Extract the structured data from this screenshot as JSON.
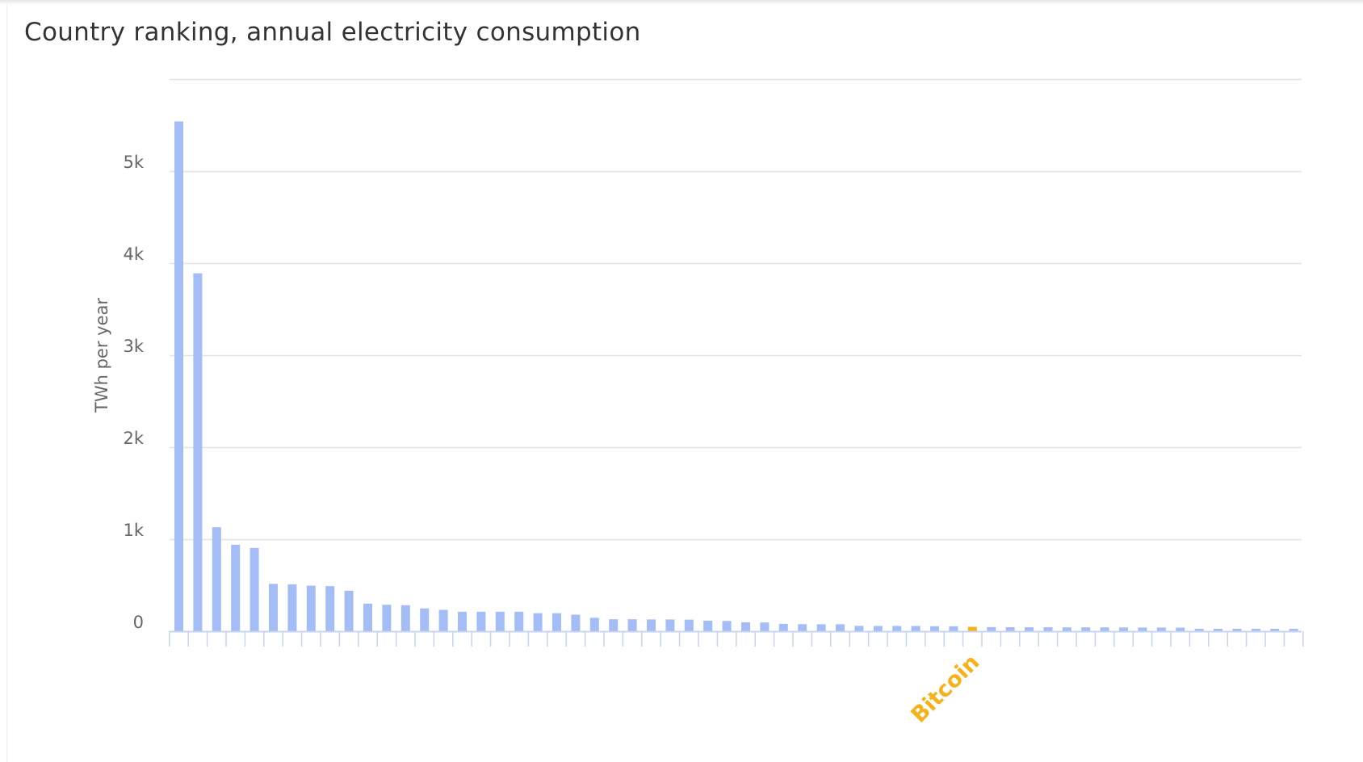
{
  "title": "Country ranking, annual electricity consumption",
  "colors": {
    "bar": "#a5bdf7",
    "highlight": "#f7b21a",
    "grid": "#e3e3e3",
    "axis": "#c8d4ee",
    "text": "#666666",
    "title": "#333333"
  },
  "chart_data": {
    "type": "bar",
    "title": "Country ranking, annual electricity consumption",
    "xlabel": "",
    "ylabel": "TWh per year",
    "ylim": [
      0,
      6000
    ],
    "yticks": [
      0,
      1000,
      2000,
      3000,
      4000,
      5000
    ],
    "ytick_labels": [
      "0",
      "1k",
      "2k",
      "3k",
      "4k",
      "5k"
    ],
    "grid": true,
    "highlight_index": 42,
    "highlight_label": "Bitcoin",
    "values": [
      5540,
      3890,
      1130,
      940,
      905,
      515,
      510,
      495,
      490,
      440,
      300,
      288,
      283,
      248,
      232,
      212,
      212,
      212,
      212,
      196,
      196,
      180,
      146,
      130,
      130,
      128,
      128,
      126,
      115,
      112,
      97,
      95,
      80,
      77,
      76,
      76,
      58,
      57,
      57,
      57,
      55,
      54,
      48,
      45,
      44,
      43,
      43,
      42,
      42,
      42,
      41,
      40,
      40,
      39,
      26,
      25,
      25,
      24,
      23,
      22
    ]
  }
}
